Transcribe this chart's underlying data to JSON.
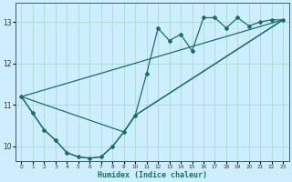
{
  "title": "",
  "xlabel": "Humidex (Indice chaleur)",
  "bg_color": "#cceeff",
  "grid_color": "#aaddcc",
  "line_color": "#1a6e6a",
  "xlim": [
    -0.5,
    23.5
  ],
  "ylim": [
    9.65,
    13.45
  ],
  "yticks": [
    10,
    11,
    12,
    13
  ],
  "xticks": [
    0,
    1,
    2,
    3,
    4,
    5,
    6,
    7,
    8,
    9,
    10,
    11,
    12,
    13,
    14,
    15,
    16,
    17,
    18,
    19,
    20,
    21,
    22,
    23
  ],
  "series1_x": [
    0,
    1,
    2,
    3,
    4,
    5,
    6,
    7,
    8,
    9,
    10,
    11,
    12,
    13,
    14,
    15,
    16,
    17,
    18,
    19,
    20,
    21,
    22,
    23
  ],
  "series1_y": [
    11.2,
    10.8,
    10.4,
    10.15,
    9.85,
    9.75,
    9.72,
    9.75,
    10.0,
    10.35,
    10.75,
    11.75,
    12.85,
    12.55,
    12.7,
    12.3,
    13.1,
    13.1,
    12.85,
    13.1,
    12.9,
    13.0,
    13.05,
    13.05
  ],
  "series2_x": [
    0,
    1,
    2,
    3,
    4,
    5,
    6,
    7,
    8,
    9,
    10,
    23
  ],
  "series2_y": [
    11.2,
    10.8,
    10.4,
    10.15,
    9.85,
    9.75,
    9.72,
    9.75,
    10.0,
    10.35,
    10.75,
    13.05
  ],
  "series3_x": [
    0,
    9,
    10,
    23
  ],
  "series3_y": [
    11.2,
    10.35,
    10.75,
    13.05
  ],
  "series4_x": [
    0,
    23
  ],
  "series4_y": [
    11.2,
    13.05
  ]
}
